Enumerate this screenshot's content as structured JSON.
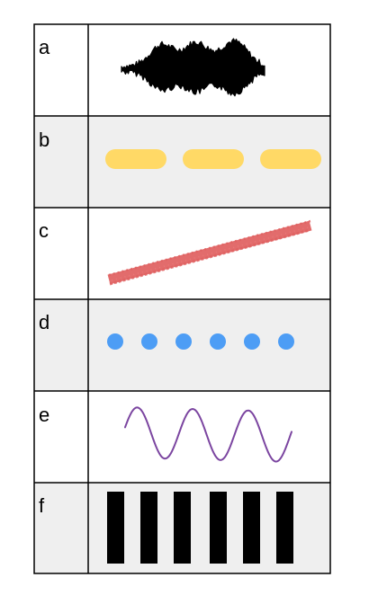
{
  "rows": [
    {
      "label": "a",
      "pattern": "audio-waveform",
      "color": "#000000",
      "background": "#ffffff"
    },
    {
      "label": "b",
      "pattern": "dashed-line",
      "color": "#ffd966",
      "background": "#efefef"
    },
    {
      "label": "c",
      "pattern": "crayon-stroke",
      "color": "#e06060",
      "background": "#ffffff"
    },
    {
      "label": "d",
      "pattern": "dotted-line",
      "color": "#4d9df5",
      "background": "#efefef"
    },
    {
      "label": "e",
      "pattern": "sine-wave",
      "color": "#7b45a0",
      "background": "#ffffff"
    },
    {
      "label": "f",
      "pattern": "vertical-bars",
      "color": "#000000",
      "background": "#efefef"
    }
  ]
}
